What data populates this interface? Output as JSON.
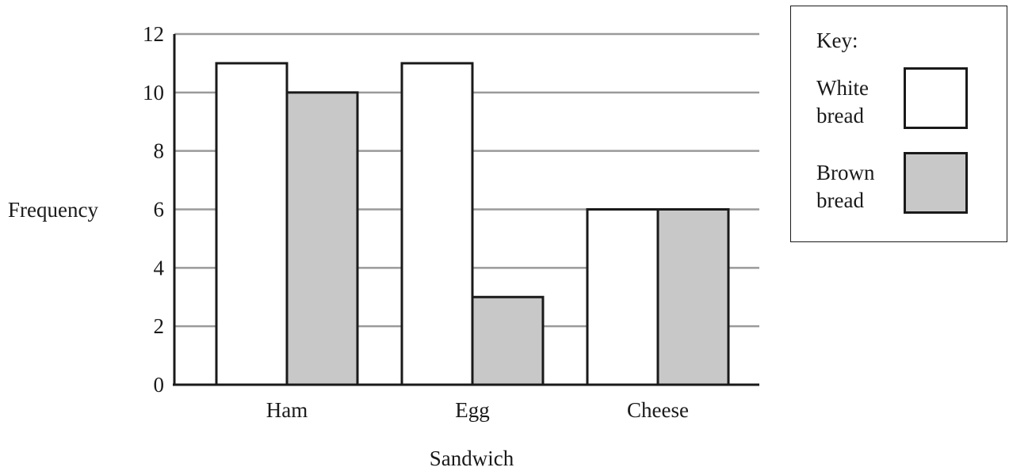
{
  "chart_data": {
    "type": "bar",
    "title": "",
    "xlabel": "Sandwich",
    "ylabel": "Frequency",
    "categories": [
      "Ham",
      "Egg",
      "Cheese"
    ],
    "series": [
      {
        "name": "White bread",
        "values": [
          11,
          11,
          6
        ],
        "color": "#ffffff"
      },
      {
        "name": "Brown bread",
        "values": [
          10,
          3,
          6
        ],
        "color": "#c8c8c8"
      }
    ],
    "ylim": [
      0,
      12
    ],
    "yticks": [
      "0",
      "2",
      "4",
      "6",
      "8",
      "10",
      "12"
    ],
    "grid": true,
    "gridColor": "#9a9a9a",
    "legend_position": "top-right"
  },
  "legend": {
    "title": "Key:",
    "items": [
      {
        "line1": "White",
        "line2": "bread",
        "color": "#ffffff"
      },
      {
        "line1": "Brown",
        "line2": "bread",
        "color": "#c8c8c8"
      }
    ]
  }
}
